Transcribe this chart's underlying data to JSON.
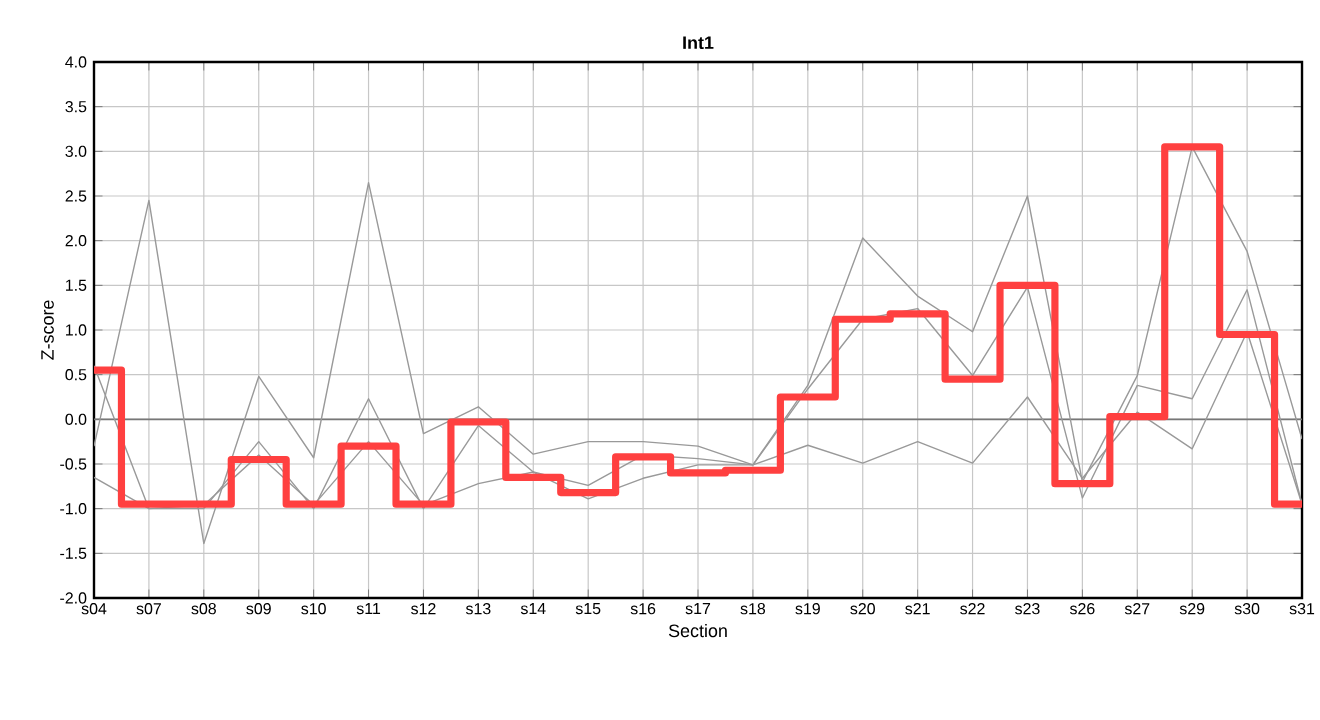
{
  "chart_data": {
    "type": "line",
    "title": "Int1",
    "xlabel": "Section",
    "ylabel": "Z-score",
    "categories": [
      "s04",
      "s07",
      "s08",
      "s09",
      "s10",
      "s11",
      "s12",
      "s13",
      "s14",
      "s15",
      "s16",
      "s17",
      "s18",
      "s19",
      "s20",
      "s21",
      "s22",
      "s23",
      "s26",
      "s27",
      "s29",
      "s30",
      "s31"
    ],
    "series": [
      {
        "color": "#999999",
        "values": [
          -0.3,
          2.45,
          -1.39,
          0.48,
          -0.43,
          2.65,
          -0.16,
          0.14,
          -0.39,
          -0.25,
          -0.25,
          -0.3,
          -0.51,
          0.38,
          2.03,
          1.38,
          0.98,
          2.5,
          -0.7,
          0.49,
          3.05,
          1.88,
          -0.22
        ]
      },
      {
        "color": "#999999",
        "values": [
          0.6,
          -1.0,
          -1.0,
          -0.25,
          -1.0,
          0.23,
          -1.0,
          -0.07,
          -0.59,
          -0.74,
          -0.4,
          -0.44,
          -0.51,
          0.34,
          1.12,
          1.24,
          0.49,
          1.48,
          -0.88,
          0.38,
          0.23,
          1.45,
          -0.95
        ]
      },
      {
        "color": "#999999",
        "values": [
          -0.65,
          -1.0,
          -0.96,
          -0.4,
          -0.96,
          -0.25,
          -0.96,
          -0.72,
          -0.59,
          -0.89,
          -0.66,
          -0.51,
          -0.51,
          -0.29,
          -0.49,
          -0.25,
          -0.49,
          0.25,
          -0.66,
          0.08,
          -0.33,
          0.98,
          -0.95
        ]
      },
      {
        "type": "step",
        "color": "#ff4040",
        "values": [
          0.55,
          -0.95,
          -0.95,
          -0.45,
          -0.95,
          -0.3,
          -0.95,
          -0.03,
          -0.65,
          -0.82,
          -0.42,
          -0.6,
          -0.57,
          0.25,
          1.12,
          1.18,
          0.45,
          1.5,
          -0.72,
          0.03,
          3.05,
          0.95,
          -0.95
        ]
      }
    ],
    "ylim": [
      -2,
      4
    ],
    "yticks": [
      {
        "value": -2,
        "label": "-2.0"
      },
      {
        "value": -1.5,
        "label": "-1.5"
      },
      {
        "value": -1,
        "label": "-1.0"
      },
      {
        "value": -0.5,
        "label": "-0.5"
      },
      {
        "value": 0,
        "label": "0.0"
      },
      {
        "value": 0.5,
        "label": "0.5"
      },
      {
        "value": 1,
        "label": "1.0"
      },
      {
        "value": 1.5,
        "label": "1.5"
      },
      {
        "value": 2,
        "label": "2.0"
      },
      {
        "value": 2.5,
        "label": "2.5"
      },
      {
        "value": 3,
        "label": "3.0"
      },
      {
        "value": 3.5,
        "label": "3.5"
      },
      {
        "value": 4,
        "label": "4.0"
      }
    ],
    "ref_lines": [
      {
        "axis": "y",
        "value": 0,
        "color": "#777777"
      }
    ],
    "grid": true,
    "marker": "none",
    "line_style": "solid"
  }
}
